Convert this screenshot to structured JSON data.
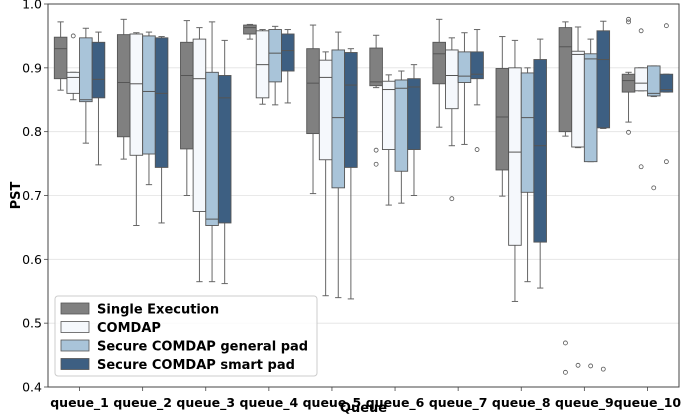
{
  "chart_data": {
    "type": "box",
    "xlabel": "Queue",
    "ylabel": "PST",
    "ylim": [
      0.4,
      1.0
    ],
    "yticks": [
      "0.4",
      "0.5",
      "0.6",
      "0.7",
      "0.8",
      "0.9",
      "1.0"
    ],
    "grid": true,
    "legend_position": "lower-left",
    "categories": [
      "queue_1",
      "queue_2",
      "queue_3",
      "queue_4",
      "queue_5",
      "queue_6",
      "queue_7",
      "queue_8",
      "queue_9",
      "queue_10"
    ],
    "series": [
      {
        "name": "Single Execution",
        "color": "#808080",
        "boxes": [
          {
            "whislo": 0.865,
            "q1": 0.883,
            "med": 0.93,
            "q3": 0.948,
            "whishi": 0.972,
            "fliers": []
          },
          {
            "whislo": 0.757,
            "q1": 0.792,
            "med": 0.877,
            "q3": 0.952,
            "whishi": 0.976,
            "fliers": []
          },
          {
            "whislo": 0.7,
            "q1": 0.773,
            "med": 0.888,
            "q3": 0.94,
            "whishi": 0.974,
            "fliers": []
          },
          {
            "whislo": 0.945,
            "q1": 0.953,
            "med": 0.963,
            "q3": 0.967,
            "whishi": 0.968,
            "fliers": []
          },
          {
            "whislo": 0.703,
            "q1": 0.797,
            "med": 0.876,
            "q3": 0.93,
            "whishi": 0.967,
            "fliers": []
          },
          {
            "whislo": 0.869,
            "q1": 0.872,
            "med": 0.878,
            "q3": 0.931,
            "whishi": 0.951,
            "fliers": [
              0.771,
              0.749
            ]
          },
          {
            "whislo": 0.807,
            "q1": 0.875,
            "med": 0.922,
            "q3": 0.94,
            "whishi": 0.976,
            "fliers": []
          },
          {
            "whislo": 0.699,
            "q1": 0.74,
            "med": 0.823,
            "q3": 0.899,
            "whishi": 0.949,
            "fliers": []
          },
          {
            "whislo": 0.793,
            "q1": 0.8,
            "med": 0.933,
            "q3": 0.963,
            "whishi": 0.972,
            "fliers": [
              0.469,
              0.423
            ]
          },
          {
            "whislo": 0.815,
            "q1": 0.862,
            "med": 0.88,
            "q3": 0.89,
            "whishi": 0.893,
            "fliers": [
              0.976,
              0.972,
              0.799
            ]
          }
        ]
      },
      {
        "name": "COMDAP",
        "color": "#f5f8fc",
        "boxes": [
          {
            "whislo": 0.85,
            "q1": 0.86,
            "med": 0.885,
            "q3": 0.893,
            "whishi": 0.893,
            "fliers": [
              0.95
            ]
          },
          {
            "whislo": 0.653,
            "q1": 0.763,
            "med": 0.875,
            "q3": 0.953,
            "whishi": 0.955,
            "fliers": []
          },
          {
            "whislo": 0.565,
            "q1": 0.675,
            "med": 0.883,
            "q3": 0.945,
            "whishi": 0.963,
            "fliers": []
          },
          {
            "whislo": 0.843,
            "q1": 0.853,
            "med": 0.905,
            "q3": 0.958,
            "whishi": 0.96,
            "fliers": []
          },
          {
            "whislo": 0.543,
            "q1": 0.756,
            "med": 0.885,
            "q3": 0.912,
            "whishi": 0.925,
            "fliers": []
          },
          {
            "whislo": 0.685,
            "q1": 0.772,
            "med": 0.866,
            "q3": 0.879,
            "whishi": 0.889,
            "fliers": []
          },
          {
            "whislo": 0.778,
            "q1": 0.836,
            "med": 0.888,
            "q3": 0.928,
            "whishi": 0.947,
            "fliers": [
              0.695
            ]
          },
          {
            "whislo": 0.534,
            "q1": 0.622,
            "med": 0.768,
            "q3": 0.9,
            "whishi": 0.943,
            "fliers": []
          },
          {
            "whislo": 0.775,
            "q1": 0.776,
            "med": 0.921,
            "q3": 0.926,
            "whishi": 0.964,
            "fliers": [
              0.434
            ]
          },
          {
            "whislo": 0.864,
            "q1": 0.864,
            "med": 0.876,
            "q3": 0.9,
            "whishi": 0.9,
            "fliers": [
              0.958,
              0.745
            ]
          }
        ]
      },
      {
        "name": "Secure COMDAP general pad",
        "color": "#a9c4d9",
        "boxes": [
          {
            "whislo": 0.782,
            "q1": 0.847,
            "med": 0.85,
            "q3": 0.947,
            "whishi": 0.962,
            "fliers": []
          },
          {
            "whislo": 0.717,
            "q1": 0.765,
            "med": 0.863,
            "q3": 0.95,
            "whishi": 0.956,
            "fliers": []
          },
          {
            "whislo": 0.565,
            "q1": 0.653,
            "med": 0.663,
            "q3": 0.893,
            "whishi": 0.972,
            "fliers": []
          },
          {
            "whislo": 0.842,
            "q1": 0.878,
            "med": 0.923,
            "q3": 0.96,
            "whishi": 0.965,
            "fliers": []
          },
          {
            "whislo": 0.54,
            "q1": 0.712,
            "med": 0.822,
            "q3": 0.928,
            "whishi": 0.956,
            "fliers": []
          },
          {
            "whislo": 0.688,
            "q1": 0.738,
            "med": 0.868,
            "q3": 0.881,
            "whishi": 0.895,
            "fliers": []
          },
          {
            "whislo": 0.78,
            "q1": 0.877,
            "med": 0.887,
            "q3": 0.925,
            "whishi": 0.955,
            "fliers": []
          },
          {
            "whislo": 0.565,
            "q1": 0.705,
            "med": 0.822,
            "q3": 0.892,
            "whishi": 0.9,
            "fliers": []
          },
          {
            "whislo": 0.753,
            "q1": 0.753,
            "med": 0.914,
            "q3": 0.922,
            "whishi": 0.945,
            "fliers": [
              0.433
            ]
          },
          {
            "whislo": 0.855,
            "q1": 0.856,
            "med": 0.86,
            "q3": 0.903,
            "whishi": 0.903,
            "fliers": [
              0.712
            ]
          }
        ]
      },
      {
        "name": "Secure COMDAP smart pad",
        "color": "#3d5f82",
        "boxes": [
          {
            "whislo": 0.748,
            "q1": 0.853,
            "med": 0.882,
            "q3": 0.94,
            "whishi": 0.956,
            "fliers": []
          },
          {
            "whislo": 0.657,
            "q1": 0.744,
            "med": 0.86,
            "q3": 0.947,
            "whishi": 0.949,
            "fliers": []
          },
          {
            "whislo": 0.562,
            "q1": 0.657,
            "med": 0.853,
            "q3": 0.888,
            "whishi": 0.943,
            "fliers": []
          },
          {
            "whislo": 0.845,
            "q1": 0.895,
            "med": 0.927,
            "q3": 0.953,
            "whishi": 0.96,
            "fliers": []
          },
          {
            "whislo": 0.538,
            "q1": 0.744,
            "med": 0.873,
            "q3": 0.924,
            "whishi": 0.93,
            "fliers": []
          },
          {
            "whislo": 0.7,
            "q1": 0.772,
            "med": 0.87,
            "q3": 0.883,
            "whishi": 0.905,
            "fliers": []
          },
          {
            "whislo": 0.842,
            "q1": 0.883,
            "med": 0.89,
            "q3": 0.925,
            "whishi": 0.96,
            "fliers": [
              0.772
            ]
          },
          {
            "whislo": 0.555,
            "q1": 0.627,
            "med": 0.778,
            "q3": 0.913,
            "whishi": 0.945,
            "fliers": []
          },
          {
            "whislo": 0.805,
            "q1": 0.806,
            "med": 0.913,
            "q3": 0.958,
            "whishi": 0.973,
            "fliers": [
              0.428
            ]
          },
          {
            "whislo": 0.862,
            "q1": 0.862,
            "med": 0.866,
            "q3": 0.89,
            "whishi": 0.89,
            "fliers": [
              0.966,
              0.753
            ]
          }
        ]
      }
    ]
  }
}
